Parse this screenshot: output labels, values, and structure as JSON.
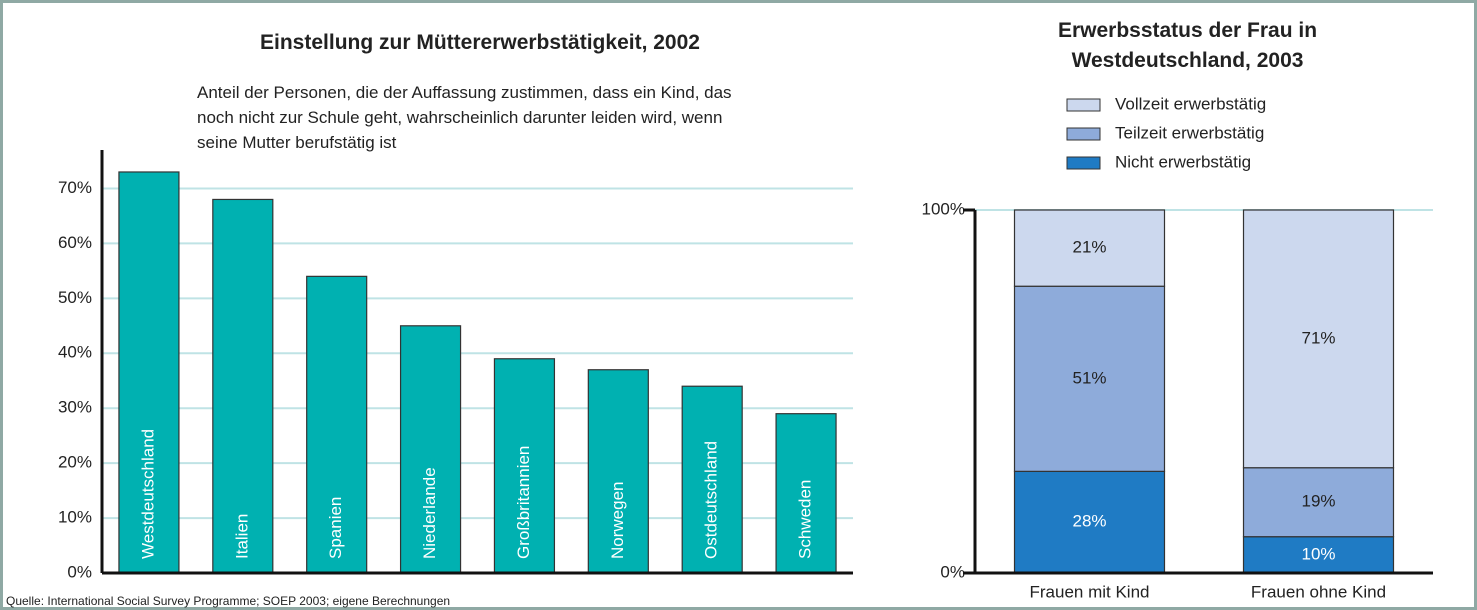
{
  "chart_data": [
    {
      "type": "bar",
      "title": "Einstellung zur Müttererwerbstätigkeit, 2002",
      "subtitle": "Anteil der Personen, die der Auffassung zustimmen, dass ein Kind, das noch nicht zur Schule geht, wahrscheinlich darunter leiden wird, wenn seine Mutter berufstätig ist",
      "source": "Quelle: International Social Survey Programme; SOEP 2003; eigene Berechnungen",
      "categories": [
        "Westdeutschland",
        "Italien",
        "Spanien",
        "Niederlande",
        "Großbritannien",
        "Norwegen",
        "Ostdeutschland",
        "Schweden"
      ],
      "values": [
        73,
        68,
        54,
        45,
        39,
        37,
        34,
        29
      ],
      "color": "#00b1b1",
      "ylim": [
        0,
        77
      ],
      "yticks": [
        {
          "value": 0,
          "label": "0%"
        },
        {
          "value": 10,
          "label": "10%"
        },
        {
          "value": 20,
          "label": "20%"
        },
        {
          "value": 30,
          "label": "30%"
        },
        {
          "value": 40,
          "label": "40%"
        },
        {
          "value": 50,
          "label": "50%"
        },
        {
          "value": 60,
          "label": "60%"
        },
        {
          "value": 70,
          "label": "70%"
        }
      ],
      "grid": true
    },
    {
      "type": "stacked_bar",
      "title": "Erwerbsstatus der Frau in Westdeutschland, 2003",
      "categories": [
        "Frauen mit Kind",
        "Frauen ohne Kind"
      ],
      "series": [
        {
          "name": "Nicht erwerbstätig",
          "color": "#1f7bc4",
          "values": [
            28,
            10
          ],
          "value_labels": [
            "28%",
            "10%"
          ]
        },
        {
          "name": "Teilzeit erwerbstätig",
          "color": "#8eabda",
          "values": [
            51,
            19
          ],
          "value_labels": [
            "51%",
            "19%"
          ]
        },
        {
          "name": "Vollzeit erwerbstätig",
          "color": "#ccd8ee",
          "values": [
            21,
            71
          ],
          "value_labels": [
            "21%",
            "71%"
          ]
        }
      ],
      "ylim": [
        0,
        100
      ],
      "yticks": [
        {
          "value": 0,
          "label": "0%"
        },
        {
          "value": 100,
          "label": "100%"
        }
      ],
      "grid": true
    }
  ]
}
